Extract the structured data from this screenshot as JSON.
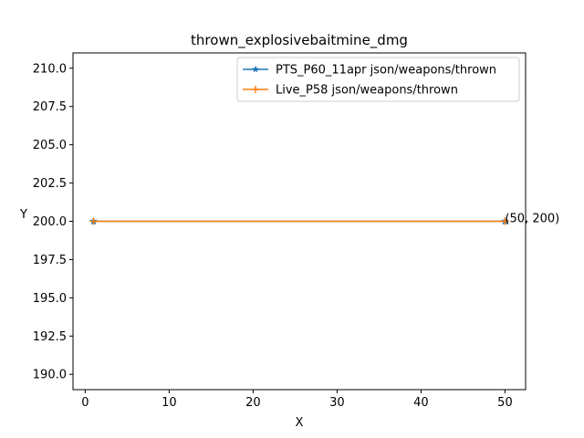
{
  "chart_data": {
    "type": "line",
    "title": "thrown_explosivebaitmine_dmg",
    "xlabel": "X",
    "ylabel": "Y",
    "xlim": [
      -1.45,
      52.45
    ],
    "ylim": [
      189.0,
      211.0
    ],
    "xticks": [
      0,
      10,
      20,
      30,
      40,
      50
    ],
    "xtick_labels": [
      "0",
      "10",
      "20",
      "30",
      "40",
      "50"
    ],
    "yticks": [
      190.0,
      192.5,
      195.0,
      197.5,
      200.0,
      202.5,
      205.0,
      207.5,
      210.0
    ],
    "ytick_labels": [
      "190.0",
      "192.5",
      "195.0",
      "197.5",
      "200.0",
      "202.5",
      "205.0",
      "207.5",
      "210.0"
    ],
    "grid": false,
    "legend_position": "upper right",
    "series": [
      {
        "name": "PTS_P60_11apr json/weapons/thrown",
        "x": [
          1,
          50
        ],
        "y": [
          200,
          200
        ],
        "color": "#1f77b4",
        "marker": "star"
      },
      {
        "name": "Live_P58 json/weapons/thrown",
        "x": [
          1,
          50
        ],
        "y": [
          200,
          200
        ],
        "color": "#ff7f0e",
        "marker": "plus"
      }
    ],
    "annotations": [
      {
        "text": "(50, 200)",
        "x": 50,
        "y": 200
      }
    ]
  }
}
